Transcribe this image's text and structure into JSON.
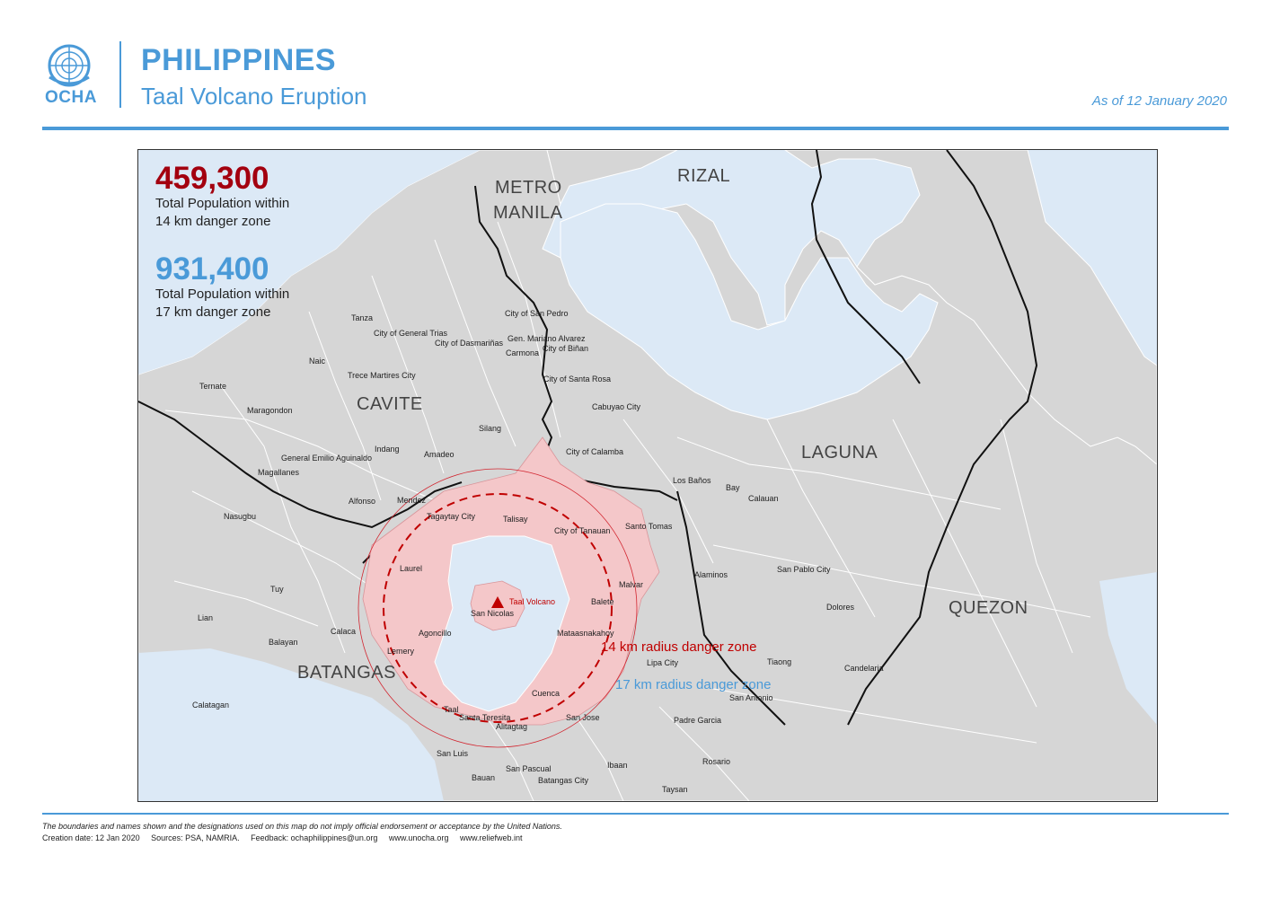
{
  "header": {
    "logo_text": "OCHA",
    "title": "PHILIPPINES",
    "subtitle": "Taal Volcano Eruption",
    "date": "As of 12 January 2020"
  },
  "stats": [
    {
      "value": "459,300",
      "label_line1": "Total Population within",
      "label_line2": "14 km danger zone",
      "color": "#a3000f"
    },
    {
      "value": "931,400",
      "label_line1": "Total Population within",
      "label_line2": "17 km danger zone",
      "color": "#4a9ad8"
    }
  ],
  "map": {
    "provinces": {
      "metro_manila_1": "METRO",
      "metro_manila_2": "MANILA",
      "rizal": "RIZAL",
      "cavite": "CAVITE",
      "laguna": "LAGUNA",
      "batangas": "BATANGAS",
      "quezon": "QUEZON"
    },
    "cities": [
      "Tanza",
      "City of General Trias",
      "City of Dasmariñas",
      "City of San Pedro",
      "Gen. Mariano Alvarez",
      "City of Biñan",
      "Carmona",
      "Naic",
      "Trece Martires City",
      "City of Santa Rosa",
      "Ternate",
      "Maragondon",
      "Cabuyao City",
      "Silang",
      "City of Calamba",
      "General Emilio Aguinaldo",
      "Indang",
      "Amadeo",
      "Magallanes",
      "Los Baños",
      "Bay",
      "Calauan",
      "Alfonso",
      "Mendez",
      "Nasugbu",
      "Tagaytay City",
      "Talisay",
      "Santo Tomas",
      "City of Tanauan",
      "Laurel",
      "Alaminos",
      "San Pablo City",
      "Tuy",
      "Malvar",
      "San Nicolas",
      "Balete",
      "Dolores",
      "Lian",
      "Calaca",
      "Agoncillo",
      "Mataasnakahoy",
      "Balayan",
      "Lemery",
      "Lipa City",
      "Tiaong",
      "Candelaria",
      "Cuenca",
      "San Antonio",
      "Calatagan",
      "Taal",
      "Santa Teresita",
      "Alitagtag",
      "San Jose",
      "Padre Garcia",
      "San Luis",
      "Rosario",
      "Ibaan",
      "San Pascual",
      "Bauan",
      "Batangas City",
      "Taysan"
    ],
    "volcano_label": "Taal Volcano",
    "zone14_label": "14 km radius danger zone",
    "zone17_label": "17 km radius danger zone",
    "colors": {
      "water": "#dce9f6",
      "land": "#d6d6d6",
      "zone_fill": "#f4c7c9",
      "zone_stroke": "#d22630",
      "accent": "#4a9ad8"
    }
  },
  "footer": {
    "disclaimer": "The boundaries and names shown and the designations used on this map do not imply official endorsement or acceptance by the United Nations.",
    "creation": "Creation date: 12 Jan 2020",
    "sources": "Sources: PSA, NAMRIA.",
    "feedback": "Feedback: ochaphilippines@un.org",
    "site1": "www.unocha.org",
    "site2": "www.reliefweb.int"
  }
}
